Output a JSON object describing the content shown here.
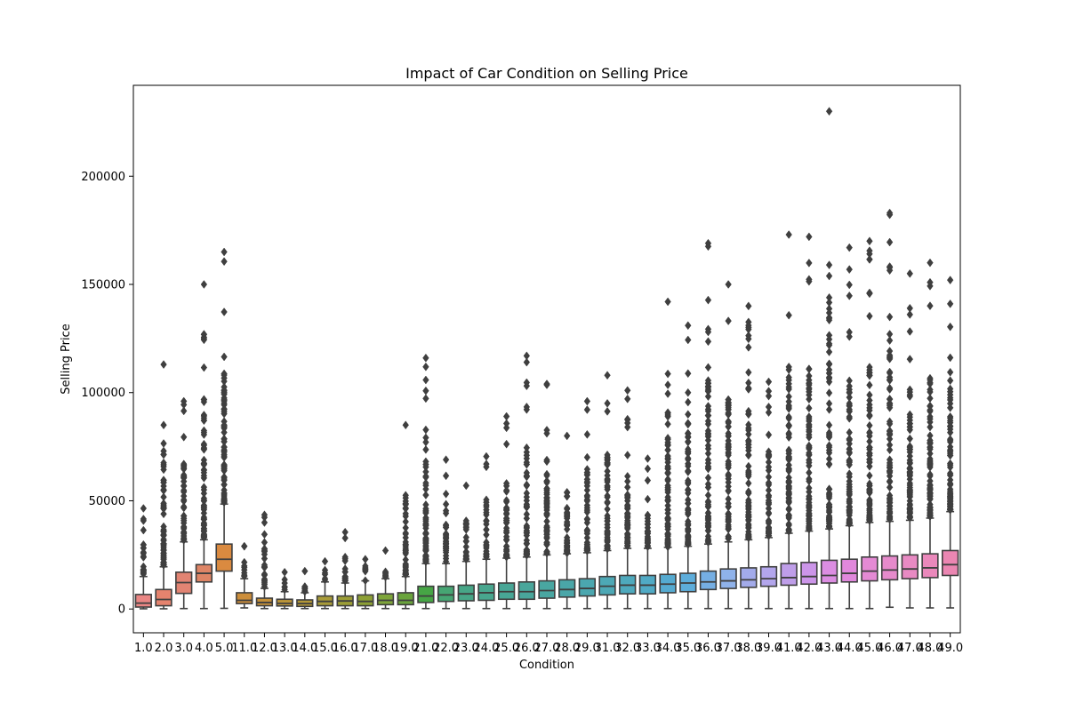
{
  "chart_data": {
    "type": "box",
    "title": "Impact of Car Condition on Selling Price",
    "xlabel": "Condition",
    "ylabel": "Selling Price",
    "ylim": [
      -11000,
      242000
    ],
    "yticks": [
      0,
      50000,
      100000,
      150000,
      200000
    ],
    "grid": false,
    "categories": [
      "1.0",
      "2.0",
      "3.0",
      "4.0",
      "5.0",
      "11.0",
      "12.0",
      "13.0",
      "14.0",
      "15.0",
      "16.0",
      "17.0",
      "18.0",
      "19.0",
      "21.0",
      "22.0",
      "23.0",
      "24.0",
      "25.0",
      "26.0",
      "27.0",
      "28.0",
      "29.0",
      "31.0",
      "32.0",
      "33.0",
      "34.0",
      "35.0",
      "36.0",
      "37.0",
      "38.0",
      "39.0",
      "41.0",
      "42.0",
      "43.0",
      "44.0",
      "45.0",
      "46.0",
      "47.0",
      "48.0",
      "49.0"
    ],
    "boxes": [
      {
        "q1": 900,
        "median": 2700,
        "q3": 6700,
        "whisker_low": 100,
        "whisker_high": 15000,
        "outlier_max": 46500,
        "color": "#ea8684"
      },
      {
        "q1": 1500,
        "median": 4400,
        "q3": 9000,
        "whisker_low": 100,
        "whisker_high": 19500,
        "outlier_max": 113000,
        "color": "#e5836e"
      },
      {
        "q1": 7200,
        "median": 12200,
        "q3": 17000,
        "whisker_low": 200,
        "whisker_high": 31000,
        "outlier_max": 96000,
        "color": "#e28473"
      },
      {
        "q1": 12500,
        "median": 16500,
        "q3": 20500,
        "whisker_low": 200,
        "whisker_high": 32000,
        "outlier_max": 150000,
        "color": "#de8566"
      },
      {
        "q1": 17500,
        "median": 23000,
        "q3": 30000,
        "whisker_low": 300,
        "whisker_high": 48500,
        "outlier_max": 165000,
        "color": "#da8a40"
      },
      {
        "q1": 2500,
        "median": 4000,
        "q3": 7500,
        "whisker_low": 500,
        "whisker_high": 14000,
        "outlier_max": 29000,
        "color": "#cc8e3b"
      },
      {
        "q1": 1500,
        "median": 3000,
        "q3": 5000,
        "whisker_low": 200,
        "whisker_high": 9500,
        "outlier_max": 43500,
        "color": "#c49038"
      },
      {
        "q1": 1400,
        "median": 2600,
        "q3": 4500,
        "whisker_low": 200,
        "whisker_high": 8000,
        "outlier_max": 17000,
        "color": "#bb9538"
      },
      {
        "q1": 1200,
        "median": 2500,
        "q3": 4200,
        "whisker_low": 200,
        "whisker_high": 7500,
        "outlier_max": 17500,
        "color": "#b39736"
      },
      {
        "q1": 1500,
        "median": 3500,
        "q3": 6000,
        "whisker_low": 200,
        "whisker_high": 12500,
        "outlier_max": 22000,
        "color": "#a89b38"
      },
      {
        "q1": 1500,
        "median": 3700,
        "q3": 6000,
        "whisker_low": 200,
        "whisker_high": 12000,
        "outlier_max": 35500,
        "color": "#9c9e36"
      },
      {
        "q1": 1500,
        "median": 3500,
        "q3": 6500,
        "whisker_low": 200,
        "whisker_high": 13000,
        "outlier_max": 23000,
        "color": "#8da035"
      },
      {
        "q1": 2000,
        "median": 4000,
        "q3": 7000,
        "whisker_low": 200,
        "whisker_high": 14000,
        "outlier_max": 27000,
        "color": "#7ea53a"
      },
      {
        "q1": 2000,
        "median": 4000,
        "q3": 7500,
        "whisker_low": 200,
        "whisker_high": 15000,
        "outlier_max": 85000,
        "color": "#6aa43c"
      },
      {
        "q1": 3000,
        "median": 6000,
        "q3": 10500,
        "whisker_low": 200,
        "whisker_high": 21000,
        "outlier_max": 116000,
        "color": "#46a545"
      },
      {
        "q1": 3500,
        "median": 6500,
        "q3": 10500,
        "whisker_low": 200,
        "whisker_high": 21000,
        "outlier_max": 69000,
        "color": "#46a573"
      },
      {
        "q1": 3800,
        "median": 7000,
        "q3": 11000,
        "whisker_low": 200,
        "whisker_high": 22000,
        "outlier_max": 57000,
        "color": "#47a687"
      },
      {
        "q1": 4000,
        "median": 7500,
        "q3": 11500,
        "whisker_low": 200,
        "whisker_high": 23000,
        "outlier_max": 70500,
        "color": "#48a68e"
      },
      {
        "q1": 4500,
        "median": 8000,
        "q3": 12000,
        "whisker_low": 200,
        "whisker_high": 23500,
        "outlier_max": 89000,
        "color": "#48a696"
      },
      {
        "q1": 4500,
        "median": 8000,
        "q3": 12500,
        "whisker_low": 200,
        "whisker_high": 24000,
        "outlier_max": 117000,
        "color": "#49a69b"
      },
      {
        "q1": 5000,
        "median": 8500,
        "q3": 13000,
        "whisker_low": 200,
        "whisker_high": 25000,
        "outlier_max": 104000,
        "color": "#49a6a1"
      },
      {
        "q1": 5500,
        "median": 9000,
        "q3": 13500,
        "whisker_low": 200,
        "whisker_high": 25500,
        "outlier_max": 80000,
        "color": "#4aa6a8"
      },
      {
        "q1": 6000,
        "median": 9500,
        "q3": 14000,
        "whisker_low": 200,
        "whisker_high": 26000,
        "outlier_max": 96000,
        "color": "#4ba7af"
      },
      {
        "q1": 6500,
        "median": 10500,
        "q3": 15000,
        "whisker_low": 200,
        "whisker_high": 27000,
        "outlier_max": 108000,
        "color": "#4da8b5"
      },
      {
        "q1": 7000,
        "median": 11000,
        "q3": 15500,
        "whisker_low": 200,
        "whisker_high": 28000,
        "outlier_max": 101000,
        "color": "#4ea9bd"
      },
      {
        "q1": 7000,
        "median": 11000,
        "q3": 15500,
        "whisker_low": 200,
        "whisker_high": 28000,
        "outlier_max": 69500,
        "color": "#50aac5"
      },
      {
        "q1": 7500,
        "median": 11500,
        "q3": 16000,
        "whisker_low": 200,
        "whisker_high": 28500,
        "outlier_max": 142000,
        "color": "#55aad0"
      },
      {
        "q1": 8000,
        "median": 12000,
        "q3": 16500,
        "whisker_low": 200,
        "whisker_high": 29000,
        "outlier_max": 131000,
        "color": "#5daddb"
      },
      {
        "q1": 9000,
        "median": 12500,
        "q3": 17500,
        "whisker_low": 200,
        "whisker_high": 30000,
        "outlier_max": 169000,
        "color": "#75aee3"
      },
      {
        "q1": 9500,
        "median": 13000,
        "q3": 18500,
        "whisker_low": 200,
        "whisker_high": 31000,
        "outlier_max": 150000,
        "color": "#8fb2ea"
      },
      {
        "q1": 10000,
        "median": 13500,
        "q3": 19000,
        "whisker_low": 200,
        "whisker_high": 32000,
        "outlier_max": 140000,
        "color": "#a3abea"
      },
      {
        "q1": 10500,
        "median": 14000,
        "q3": 19500,
        "whisker_low": 200,
        "whisker_high": 33000,
        "outlier_max": 105000,
        "color": "#b3a6ec"
      },
      {
        "q1": 11000,
        "median": 14500,
        "q3": 21000,
        "whisker_low": 200,
        "whisker_high": 35000,
        "outlier_max": 173000,
        "color": "#bf9ee9"
      },
      {
        "q1": 11500,
        "median": 15000,
        "q3": 21500,
        "whisker_low": 200,
        "whisker_high": 36000,
        "outlier_max": 172000,
        "color": "#cc95e9"
      },
      {
        "q1": 12000,
        "median": 15500,
        "q3": 22500,
        "whisker_low": 200,
        "whisker_high": 37000,
        "outlier_max": 230000,
        "color": "#dc8de2"
      },
      {
        "q1": 12500,
        "median": 16500,
        "q3": 23000,
        "whisker_low": 200,
        "whisker_high": 38500,
        "outlier_max": 167000,
        "color": "#e188dc"
      },
      {
        "q1": 13000,
        "median": 17500,
        "q3": 24000,
        "whisker_low": 200,
        "whisker_high": 40000,
        "outlier_max": 170000,
        "color": "#e48ad4"
      },
      {
        "q1": 13500,
        "median": 18000,
        "q3": 24500,
        "whisker_low": 800,
        "whisker_high": 40500,
        "outlier_max": 183000,
        "color": "#e68acb"
      },
      {
        "q1": 14000,
        "median": 18500,
        "q3": 25000,
        "whisker_low": 500,
        "whisker_high": 41000,
        "outlier_max": 155000,
        "color": "#e88ac3"
      },
      {
        "q1": 14500,
        "median": 19000,
        "q3": 25500,
        "whisker_low": 500,
        "whisker_high": 42000,
        "outlier_max": 160000,
        "color": "#ea88bb"
      },
      {
        "q1": 15500,
        "median": 20500,
        "q3": 27000,
        "whisker_low": 500,
        "whisker_high": 45000,
        "outlier_max": 152000,
        "color": "#eb86b2"
      }
    ]
  }
}
